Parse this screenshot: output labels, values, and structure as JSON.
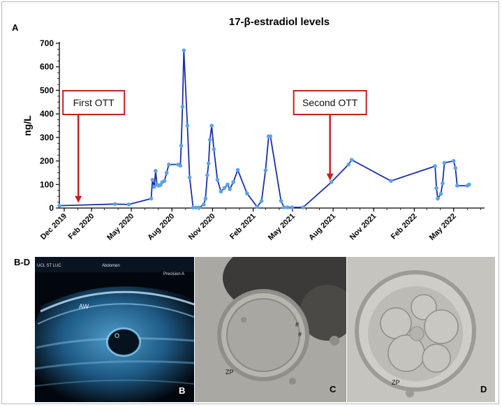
{
  "figure": {
    "panel_a_label": "A",
    "panel_bd_label": "B-D"
  },
  "chart_data": {
    "type": "line",
    "title": "17-β-estradiol levels",
    "xlabel": "",
    "ylabel": "ng/L",
    "ylim": [
      0,
      700
    ],
    "yticks": [
      0,
      100,
      200,
      300,
      400,
      500,
      600,
      700
    ],
    "xlim": [
      "2019-11-20",
      "2022-07-10"
    ],
    "xticks": [
      {
        "date": "2019-12-01",
        "label": "Dec 2019"
      },
      {
        "date": "2020-02-01",
        "label": "Feb 2020"
      },
      {
        "date": "2020-05-01",
        "label": "May 2020"
      },
      {
        "date": "2020-08-01",
        "label": "Aug 2020"
      },
      {
        "date": "2020-11-01",
        "label": "Nov 2020"
      },
      {
        "date": "2021-02-01",
        "label": "Feb 2021"
      },
      {
        "date": "2021-05-01",
        "label": "May 2021"
      },
      {
        "date": "2021-08-01",
        "label": "Aug 2021"
      },
      {
        "date": "2021-11-01",
        "label": "Nov 2021"
      },
      {
        "date": "2022-02-01",
        "label": "Feb 2022"
      },
      {
        "date": "2022-05-01",
        "label": "May 2022"
      }
    ],
    "series": [
      {
        "color": "#1a2fa8",
        "marker_color": "#5da3e8",
        "points": [
          [
            "2019-11-20",
            10
          ],
          [
            "2020-03-25",
            17
          ],
          [
            "2020-04-25",
            15
          ],
          [
            "2020-06-15",
            40
          ],
          [
            "2020-06-18",
            120
          ],
          [
            "2020-06-22",
            90
          ],
          [
            "2020-06-25",
            158
          ],
          [
            "2020-06-28",
            100
          ],
          [
            "2020-07-02",
            95
          ],
          [
            "2020-07-06",
            98
          ],
          [
            "2020-07-10",
            110
          ],
          [
            "2020-07-15",
            115
          ],
          [
            "2020-07-20",
            150
          ],
          [
            "2020-07-25",
            185
          ],
          [
            "2020-08-15",
            185
          ],
          [
            "2020-08-20",
            180
          ],
          [
            "2020-08-22",
            265
          ],
          [
            "2020-08-25",
            430
          ],
          [
            "2020-08-28",
            670
          ],
          [
            "2020-09-05",
            350
          ],
          [
            "2020-09-10",
            130
          ],
          [
            "2020-09-18",
            2
          ],
          [
            "2020-09-25",
            2
          ],
          [
            "2020-10-02",
            2
          ],
          [
            "2020-10-12",
            15
          ],
          [
            "2020-10-16",
            40
          ],
          [
            "2020-10-20",
            140
          ],
          [
            "2020-10-23",
            190
          ],
          [
            "2020-10-26",
            290
          ],
          [
            "2020-10-30",
            350
          ],
          [
            "2020-11-04",
            250
          ],
          [
            "2020-11-12",
            120
          ],
          [
            "2020-11-20",
            70
          ],
          [
            "2020-11-28",
            85
          ],
          [
            "2020-12-05",
            100
          ],
          [
            "2020-12-10",
            80
          ],
          [
            "2020-12-18",
            110
          ],
          [
            "2020-12-28",
            162
          ],
          [
            "2021-01-18",
            62
          ],
          [
            "2021-02-10",
            5
          ],
          [
            "2021-02-20",
            30
          ],
          [
            "2021-03-01",
            160
          ],
          [
            "2021-03-08",
            305
          ],
          [
            "2021-03-12",
            305
          ],
          [
            "2021-04-05",
            30
          ],
          [
            "2021-04-12",
            3
          ],
          [
            "2021-04-20",
            3
          ],
          [
            "2021-04-30",
            3
          ],
          [
            "2021-05-25",
            3
          ],
          [
            "2021-07-28",
            110
          ],
          [
            "2021-09-05",
            185
          ],
          [
            "2021-09-12",
            205
          ],
          [
            "2021-12-10",
            115
          ],
          [
            "2022-03-20",
            178
          ],
          [
            "2022-03-23",
            85
          ],
          [
            "2022-03-26",
            40
          ],
          [
            "2022-04-02",
            60
          ],
          [
            "2022-04-06",
            105
          ],
          [
            "2022-04-10",
            192
          ],
          [
            "2022-05-01",
            200
          ],
          [
            "2022-05-05",
            170
          ],
          [
            "2022-05-09",
            95
          ],
          [
            "2022-06-01",
            95
          ],
          [
            "2022-06-05",
            100
          ]
        ]
      }
    ],
    "annotations": [
      {
        "text": "First OTT",
        "date": "2020-01-02",
        "value": 10
      },
      {
        "text": "Second OTT",
        "date": "2021-07-25",
        "value": 105
      }
    ],
    "grid": false,
    "legend": "none"
  },
  "images": {
    "b": {
      "label": "B",
      "annotations": [
        "AW",
        "O"
      ],
      "header_left": "UCL ST LUC",
      "header_mid": "Abdomen",
      "header_right": "Precision A"
    },
    "c": {
      "label": "C",
      "annotations": [
        "ZP",
        "#",
        "#"
      ]
    },
    "d": {
      "label": "D",
      "annotations": [
        "ZP"
      ]
    }
  }
}
